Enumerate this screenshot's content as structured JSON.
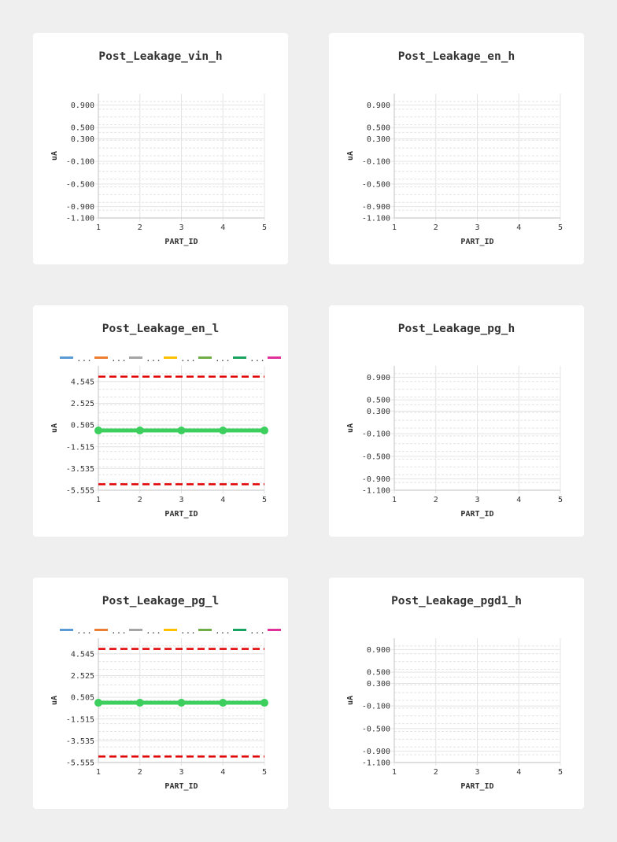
{
  "colors": {
    "grid": "#e4e4e4",
    "axis": "#cccccc",
    "limit": "#e00000",
    "data": "#3ccf5e",
    "legend": [
      "#5b9bd5",
      "#ed7d31",
      "#a5a5a5",
      "#ffc000",
      "#70ad47",
      "#1aa260",
      "#e0309a"
    ]
  },
  "chart_data": [
    {
      "type": "line",
      "title": "Post_Leakage_vin_h",
      "xlabel": "PART_ID",
      "ylabel": "uA",
      "x_ticks": [
        1,
        2,
        3,
        4,
        5
      ],
      "xlim": [
        1,
        5
      ],
      "y_ticks": [
        "0.900",
        "0.500",
        "0.300",
        "-0.100",
        "-0.500",
        "-0.900",
        "-1.100"
      ],
      "ylim": [
        -1.1,
        1.1
      ],
      "legend": [],
      "series": [],
      "limits": []
    },
    {
      "type": "line",
      "title": "Post_Leakage_en_h",
      "xlabel": "PART_ID",
      "ylabel": "uA",
      "x_ticks": [
        1,
        2,
        3,
        4,
        5
      ],
      "xlim": [
        1,
        5
      ],
      "y_ticks": [
        "0.900",
        "0.500",
        "0.300",
        "-0.100",
        "-0.500",
        "-0.900",
        "-1.100"
      ],
      "ylim": [
        -1.1,
        1.1
      ],
      "legend": [],
      "series": [],
      "limits": []
    },
    {
      "type": "line",
      "title": "Post_Leakage_en_l",
      "xlabel": "PART_ID",
      "ylabel": "uA",
      "x_ticks": [
        1,
        2,
        3,
        4,
        5
      ],
      "xlim": [
        1,
        5
      ],
      "y_ticks": [
        "4.545",
        "2.525",
        "0.505",
        "-1.515",
        "-3.535",
        "-5.555"
      ],
      "ylim": [
        -5.555,
        6.0
      ],
      "legend": [
        "...",
        "...",
        "...",
        "...",
        "...",
        "...",
        ""
      ],
      "series": [
        {
          "x": [
            1,
            2,
            3,
            4,
            5
          ],
          "y": [
            0.0,
            0.0,
            0.0,
            0.0,
            0.0
          ]
        }
      ],
      "limits": [
        5.0,
        -5.0
      ]
    },
    {
      "type": "line",
      "title": "Post_Leakage_pg_h",
      "xlabel": "PART_ID",
      "ylabel": "uA",
      "x_ticks": [
        1,
        2,
        3,
        4,
        5
      ],
      "xlim": [
        1,
        5
      ],
      "y_ticks": [
        "0.900",
        "0.500",
        "0.300",
        "-0.100",
        "-0.500",
        "-0.900",
        "-1.100"
      ],
      "ylim": [
        -1.1,
        1.1
      ],
      "legend": [],
      "series": [],
      "limits": []
    },
    {
      "type": "line",
      "title": "Post_Leakage_pg_l",
      "xlabel": "PART_ID",
      "ylabel": "uA",
      "x_ticks": [
        1,
        2,
        3,
        4,
        5
      ],
      "xlim": [
        1,
        5
      ],
      "y_ticks": [
        "4.545",
        "2.525",
        "0.505",
        "-1.515",
        "-3.535",
        "-5.555"
      ],
      "ylim": [
        -5.555,
        6.0
      ],
      "legend": [
        "...",
        "...",
        "...",
        "...",
        "...",
        "...",
        ""
      ],
      "series": [
        {
          "x": [
            1,
            2,
            3,
            4,
            5
          ],
          "y": [
            0.0,
            0.0,
            0.0,
            0.0,
            0.0
          ]
        }
      ],
      "limits": [
        5.0,
        -5.0
      ]
    },
    {
      "type": "line",
      "title": "Post_Leakage_pgd1_h",
      "xlabel": "PART_ID",
      "ylabel": "uA",
      "x_ticks": [
        1,
        2,
        3,
        4,
        5
      ],
      "xlim": [
        1,
        5
      ],
      "y_ticks": [
        "0.900",
        "0.500",
        "0.300",
        "-0.100",
        "-0.500",
        "-0.900",
        "-1.100"
      ],
      "ylim": [
        -1.1,
        1.1
      ],
      "legend": [],
      "series": [],
      "limits": []
    }
  ]
}
